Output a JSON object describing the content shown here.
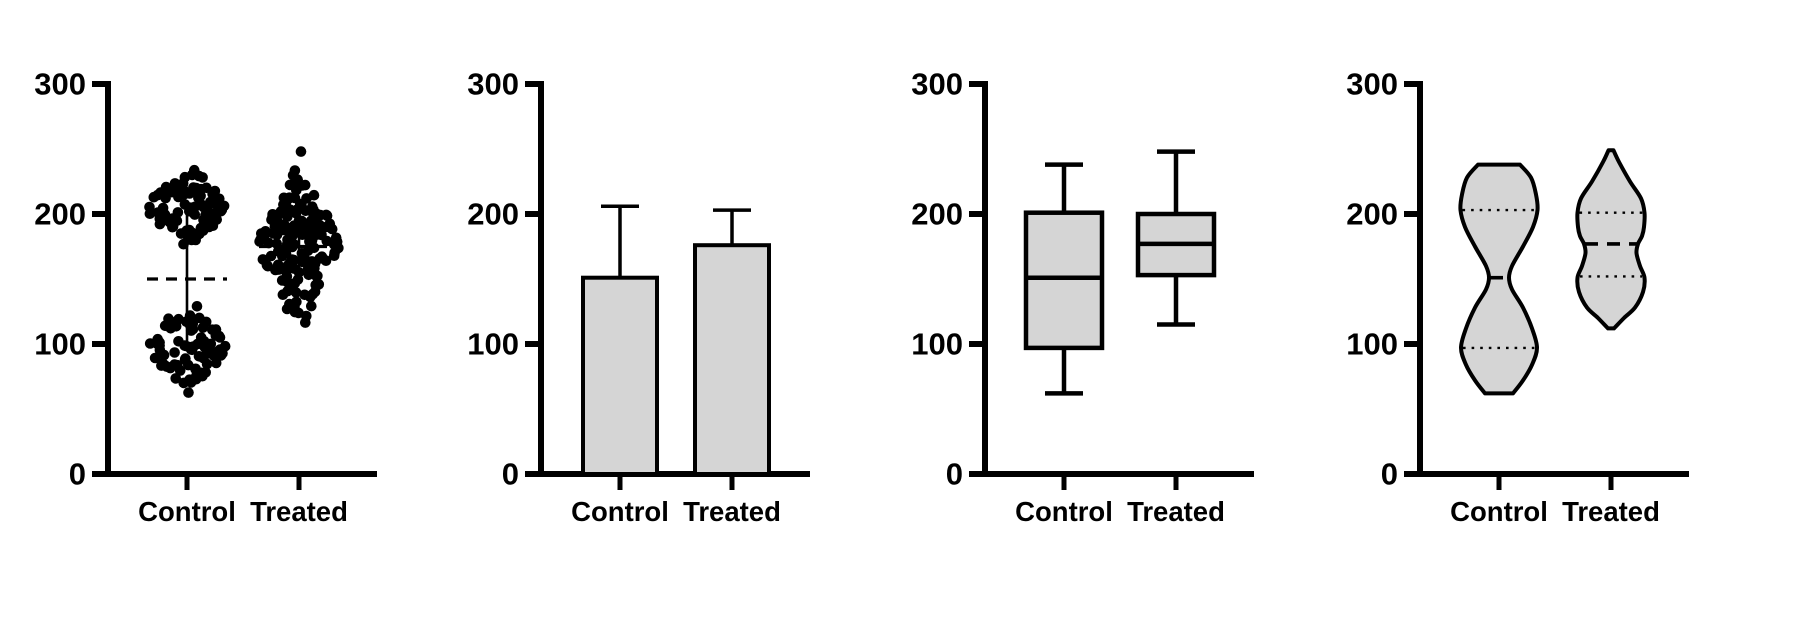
{
  "figure": {
    "background": "#ffffff",
    "panel_count": 4,
    "description": "Four-panel statistical figure: scatter with median, bar chart, box plot, violin plot"
  },
  "palette": {
    "fill_gray": "#d5d5d5",
    "stroke_black": "#000000"
  },
  "axes": {
    "ylim": [
      0,
      300
    ],
    "yticks": [
      {
        "value": 0,
        "label": "0"
      },
      {
        "value": 100,
        "label": "100"
      },
      {
        "value": 200,
        "label": "200"
      },
      {
        "value": 300,
        "label": "300"
      }
    ],
    "categories": [
      "Control",
      "Treated"
    ]
  },
  "chart_data": [
    {
      "type": "scatter",
      "subtype": "column-scatter-with-median-and-iqr",
      "categories": [
        "Control",
        "Treated"
      ],
      "ylim": [
        0,
        300
      ],
      "groups": [
        {
          "name": "Control",
          "median": 150,
          "q1": 98,
          "q3": 202,
          "clusters": [
            {
              "n": 85,
              "mean": 205,
              "sd": 15,
              "min": 175,
              "max": 240
            },
            {
              "n": 85,
              "mean": 98,
              "sd": 16,
              "min": 62,
              "max": 135
            }
          ],
          "outliers": []
        },
        {
          "name": "Treated",
          "median": 175,
          "q1": 152,
          "q3": 200,
          "clusters": [
            {
              "n": 160,
              "mean": 176,
              "sd": 26,
              "min": 115,
              "max": 245
            }
          ],
          "outliers": [
            248
          ]
        }
      ]
    },
    {
      "type": "bar",
      "subtype": "mean-with-sd-error-bar",
      "categories": [
        "Control",
        "Treated"
      ],
      "ylim": [
        0,
        300
      ],
      "values": [
        151,
        176
      ],
      "error_tops": [
        206,
        203
      ]
    },
    {
      "type": "box",
      "subtype": "box-and-whiskers-min-max",
      "categories": [
        "Control",
        "Treated"
      ],
      "ylim": [
        0,
        300
      ],
      "stats": [
        {
          "min": 62,
          "q1": 97,
          "median": 151,
          "q3": 201,
          "max": 238
        },
        {
          "min": 115,
          "q1": 153,
          "median": 177,
          "q3": 200,
          "max": 248
        }
      ]
    },
    {
      "type": "violin",
      "subtype": "violin-with-median-and-quartile-lines",
      "categories": [
        "Control",
        "Treated"
      ],
      "ylim": [
        0,
        300
      ],
      "stats": [
        {
          "min": 62,
          "q1": 97,
          "median": 151,
          "q3": 203,
          "max": 238
        },
        {
          "min": 112,
          "q1": 152,
          "median": 177,
          "q3": 201,
          "max": 249
        }
      ],
      "profiles": [
        [
          [
            238,
            21
          ],
          [
            228,
            32
          ],
          [
            215,
            37
          ],
          [
            203,
            38.5
          ],
          [
            190,
            34
          ],
          [
            175,
            24
          ],
          [
            160,
            13
          ],
          [
            151,
            10
          ],
          [
            142,
            13
          ],
          [
            128,
            24
          ],
          [
            112,
            33
          ],
          [
            97,
            38
          ],
          [
            84,
            33
          ],
          [
            72,
            24
          ],
          [
            62,
            14
          ]
        ],
        [
          [
            249,
            2.5
          ],
          [
            240,
            8
          ],
          [
            225,
            19
          ],
          [
            212,
            30
          ],
          [
            201,
            33.5
          ],
          [
            190,
            33
          ],
          [
            183,
            31
          ],
          [
            177,
            27
          ],
          [
            170,
            25.5
          ],
          [
            160,
            29
          ],
          [
            151,
            33.5
          ],
          [
            140,
            32
          ],
          [
            128,
            24
          ],
          [
            120,
            13
          ],
          [
            112,
            3
          ]
        ]
      ]
    }
  ]
}
